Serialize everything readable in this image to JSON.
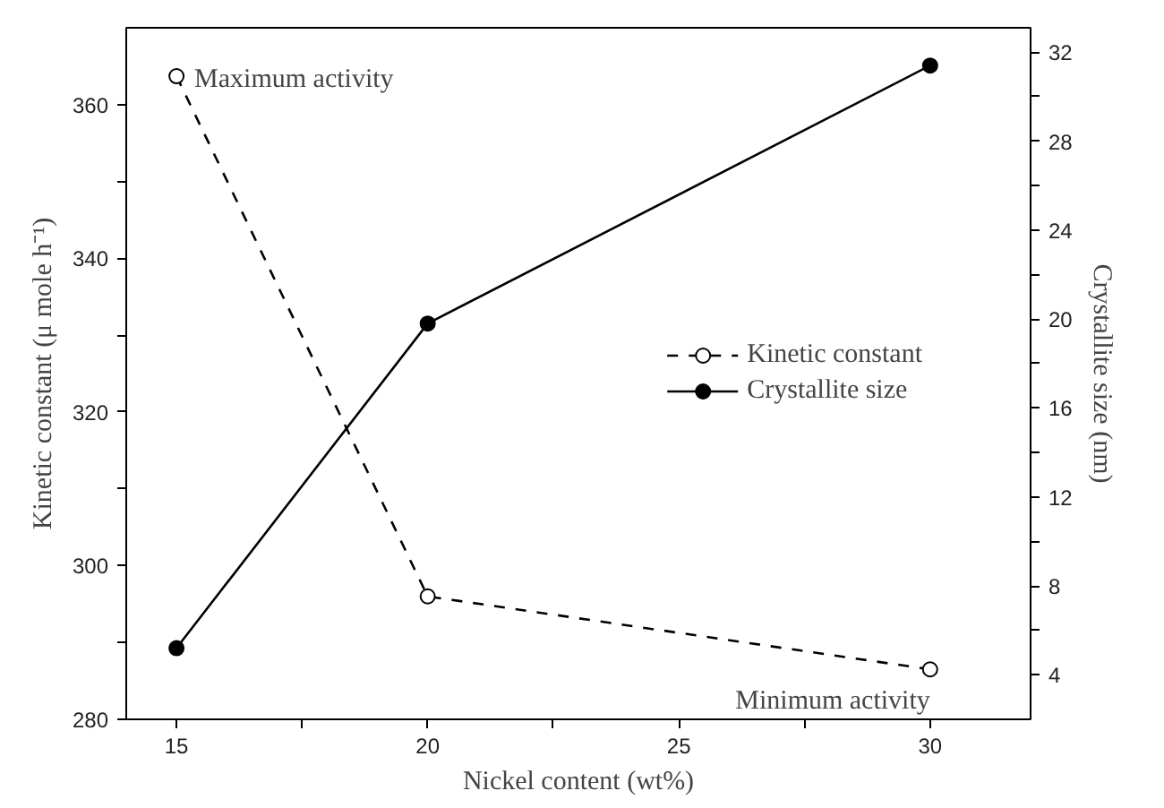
{
  "chart_data": {
    "type": "line",
    "xlabel": "Nickel content (wt%)",
    "ylabel": "Kinetic constant (μ mole h⁻¹)",
    "y2label": "Crystallite size (nm)",
    "x": [
      15,
      20,
      30
    ],
    "series": [
      {
        "name": "Kinetic constant",
        "color": "#000000",
        "values": [
          363.7,
          296,
          286.5
        ],
        "line_style": "dashed",
        "marker": "circle"
      },
      {
        "name": "Crystallite size",
        "color": "#000000",
        "values": [
          5.2,
          19.8,
          31.4
        ],
        "line_style": "solid",
        "marker": "circle",
        "axis": "y2"
      }
    ],
    "xlim": [
      14,
      32
    ],
    "xticks": [
      15,
      {
        "value": 17.5,
        "label": null
      },
      20,
      {
        "value": 22.5,
        "label": null
      },
      25,
      {
        "value": 27.5,
        "label": null
      },
      30
    ],
    "ylim": [
      280,
      370
    ],
    "yticks": [
      280,
      {
        "value": 290,
        "label": null
      },
      300,
      {
        "value": 310,
        "label": null
      },
      320,
      {
        "value": 330,
        "label": null
      },
      340,
      {
        "value": 350,
        "label": null
      },
      360
    ],
    "y2lim": [
      2,
      33.1
    ],
    "y2ticks": [
      4,
      {
        "value": 6,
        "label": null
      },
      8,
      {
        "value": 10,
        "label": null
      },
      12,
      {
        "value": 14,
        "label": null
      },
      16,
      {
        "value": 18,
        "label": null
      },
      20,
      {
        "value": 22,
        "label": null
      },
      24,
      {
        "value": 26,
        "label": null
      },
      28,
      {
        "value": 30,
        "label": null
      },
      32
    ],
    "annotations": [
      {
        "text": "Maximum activity",
        "x": 15,
        "y": 363.7
      },
      {
        "text": "Minimum activity",
        "x": 30,
        "y": 286.5
      }
    ],
    "legend": "right",
    "grid": false
  }
}
